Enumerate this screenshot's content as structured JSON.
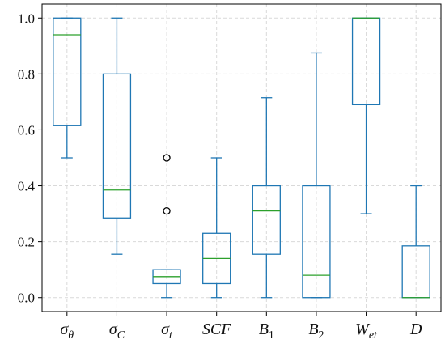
{
  "chart_data": {
    "type": "boxplot",
    "title": "",
    "xlabel": "",
    "ylabel": "",
    "ylim": [
      -0.05,
      1.05
    ],
    "yticks": [
      0.0,
      0.2,
      0.4,
      0.6,
      0.8,
      1.0
    ],
    "ytick_labels": [
      "0.0",
      "0.2",
      "0.4",
      "0.6",
      "0.8",
      "1.0"
    ],
    "grid": true,
    "colors": {
      "box": "#1f77b4",
      "median": "#2ca02c",
      "outlier": "#000000",
      "grid": "#d9d9d9",
      "axis": "#000000"
    },
    "categories": [
      {
        "base": "σ",
        "sub": "θ",
        "sub_style": "italic"
      },
      {
        "base": "σ",
        "sub": "C",
        "sub_style": "italic"
      },
      {
        "base": "σ",
        "sub": "t",
        "sub_style": "italic"
      },
      {
        "base": "SCF",
        "sub": "",
        "sub_style": "italic"
      },
      {
        "base": "B",
        "sub": "1",
        "sub_style": "upright"
      },
      {
        "base": "B",
        "sub": "2",
        "sub_style": "upright"
      },
      {
        "base": "W",
        "sub": "et",
        "sub_style": "italic"
      },
      {
        "base": "D",
        "sub": "",
        "sub_style": "italic"
      }
    ],
    "boxes": [
      {
        "whislo": 0.5,
        "q1": 0.615,
        "med": 0.94,
        "q3": 1.0,
        "whishi": 1.0,
        "fliers": []
      },
      {
        "whislo": 0.155,
        "q1": 0.285,
        "med": 0.385,
        "q3": 0.8,
        "whishi": 1.0,
        "fliers": []
      },
      {
        "whislo": 0.0,
        "q1": 0.05,
        "med": 0.075,
        "q3": 0.1,
        "whishi": 0.1,
        "fliers": [
          0.31,
          0.5
        ]
      },
      {
        "whislo": 0.0,
        "q1": 0.05,
        "med": 0.14,
        "q3": 0.23,
        "whishi": 0.5,
        "fliers": []
      },
      {
        "whislo": 0.0,
        "q1": 0.155,
        "med": 0.31,
        "q3": 0.4,
        "whishi": 0.715,
        "fliers": []
      },
      {
        "whislo": 0.0,
        "q1": 0.0,
        "med": 0.08,
        "q3": 0.4,
        "whishi": 0.875,
        "fliers": []
      },
      {
        "whislo": 0.3,
        "q1": 0.69,
        "med": 1.0,
        "q3": 1.0,
        "whishi": 1.0,
        "fliers": []
      },
      {
        "whislo": 0.0,
        "q1": 0.0,
        "med": 0.0,
        "q3": 0.185,
        "whishi": 0.4,
        "fliers": []
      }
    ]
  }
}
